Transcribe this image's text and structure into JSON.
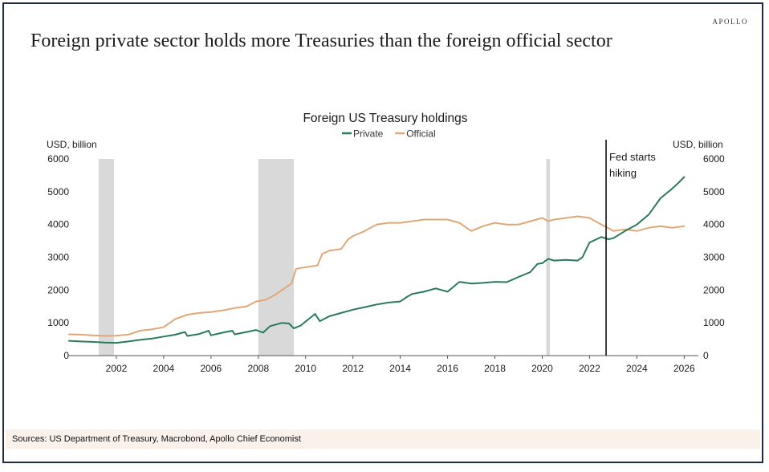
{
  "brand": "APOLLO",
  "headline": "Foreign private sector holds more Treasuries than the foreign official sector",
  "sources": "Sources: US Department of Treasury, Macrobond, Apollo Chief Economist",
  "colors": {
    "private": "#2b7a5b",
    "official": "#e0a878",
    "recession": "#d9d9d9",
    "axis": "#555555",
    "annotation_line": "#000000"
  },
  "chart_data": {
    "type": "line",
    "title": "Foreign US Treasury holdings",
    "ylabel_left": "USD, billion",
    "ylabel_right": "USD, billion",
    "xlim": [
      2000.0,
      2026.6
    ],
    "ylim": [
      0,
      6000
    ],
    "yticks": [
      0,
      1000,
      2000,
      3000,
      4000,
      5000,
      6000
    ],
    "xticks": [
      2002,
      2004,
      2006,
      2008,
      2010,
      2012,
      2014,
      2016,
      2018,
      2020,
      2022,
      2024,
      2026
    ],
    "legend": [
      "Private",
      "Official"
    ],
    "legend_position": "top-center",
    "recessions": [
      [
        2001.25,
        2001.9
      ],
      [
        2008.0,
        2009.5
      ],
      [
        2020.17,
        2020.33
      ]
    ],
    "annotation": {
      "x": 2022.7,
      "label_lines": [
        "Fed starts",
        "hiking"
      ]
    },
    "series": [
      {
        "name": "Private",
        "color": "#2b7a5b",
        "x": [
          2000.0,
          2000.5,
          2001.0,
          2001.5,
          2002.0,
          2002.5,
          2003.0,
          2003.5,
          2004.0,
          2004.5,
          2004.9,
          2005.0,
          2005.5,
          2005.9,
          2006.0,
          2006.5,
          2006.9,
          2007.0,
          2007.5,
          2007.9,
          2008.2,
          2008.5,
          2009.0,
          2009.3,
          2009.5,
          2009.8,
          2010.1,
          2010.4,
          2010.6,
          2011.0,
          2011.5,
          2012.0,
          2012.5,
          2013.0,
          2013.5,
          2014.0,
          2014.3,
          2014.5,
          2015.0,
          2015.5,
          2016.0,
          2016.5,
          2017.0,
          2017.5,
          2018.0,
          2018.5,
          2019.0,
          2019.5,
          2019.8,
          2020.0,
          2020.25,
          2020.5,
          2021.0,
          2021.5,
          2021.7,
          2022.0,
          2022.5,
          2022.8,
          2023.0,
          2023.5,
          2024.0,
          2024.5,
          2025.0,
          2025.5,
          2025.8,
          2026.0
        ],
        "y": [
          450,
          430,
          420,
          400,
          390,
          430,
          480,
          520,
          580,
          640,
          720,
          600,
          660,
          760,
          620,
          700,
          760,
          650,
          720,
          780,
          700,
          900,
          1000,
          980,
          830,
          920,
          1100,
          1270,
          1050,
          1200,
          1300,
          1400,
          1480,
          1560,
          1620,
          1650,
          1800,
          1880,
          1950,
          2050,
          1950,
          2250,
          2200,
          2220,
          2250,
          2240,
          2400,
          2550,
          2800,
          2820,
          2950,
          2900,
          2920,
          2900,
          3000,
          3450,
          3620,
          3550,
          3580,
          3800,
          4000,
          4300,
          4800,
          5100,
          5300,
          5450
        ]
      },
      {
        "name": "Official",
        "color": "#e0a878",
        "x": [
          2000.0,
          2000.5,
          2001.0,
          2001.5,
          2002.0,
          2002.5,
          2003.0,
          2003.5,
          2004.0,
          2004.5,
          2005.0,
          2005.5,
          2006.0,
          2006.5,
          2007.0,
          2007.5,
          2007.9,
          2008.3,
          2008.7,
          2009.0,
          2009.4,
          2009.6,
          2010.0,
          2010.5,
          2010.7,
          2011.0,
          2011.5,
          2011.8,
          2012.0,
          2012.5,
          2013.0,
          2013.5,
          2014.0,
          2014.5,
          2015.0,
          2015.5,
          2016.0,
          2016.5,
          2017.0,
          2017.5,
          2018.0,
          2018.5,
          2019.0,
          2019.5,
          2020.0,
          2020.25,
          2020.5,
          2021.0,
          2021.5,
          2022.0,
          2022.5,
          2022.9,
          2023.0,
          2023.5,
          2024.0,
          2024.5,
          2025.0,
          2025.5,
          2026.0
        ],
        "y": [
          650,
          640,
          620,
          600,
          610,
          640,
          760,
          800,
          870,
          1120,
          1250,
          1300,
          1330,
          1380,
          1450,
          1500,
          1650,
          1700,
          1850,
          2000,
          2200,
          2650,
          2700,
          2750,
          3100,
          3200,
          3250,
          3550,
          3650,
          3800,
          4000,
          4050,
          4050,
          4100,
          4150,
          4150,
          4150,
          4050,
          3800,
          3950,
          4050,
          4000,
          4000,
          4100,
          4200,
          4100,
          4150,
          4200,
          4250,
          4200,
          4000,
          3850,
          3800,
          3850,
          3800,
          3900,
          3950,
          3900,
          3950
        ]
      }
    ]
  }
}
